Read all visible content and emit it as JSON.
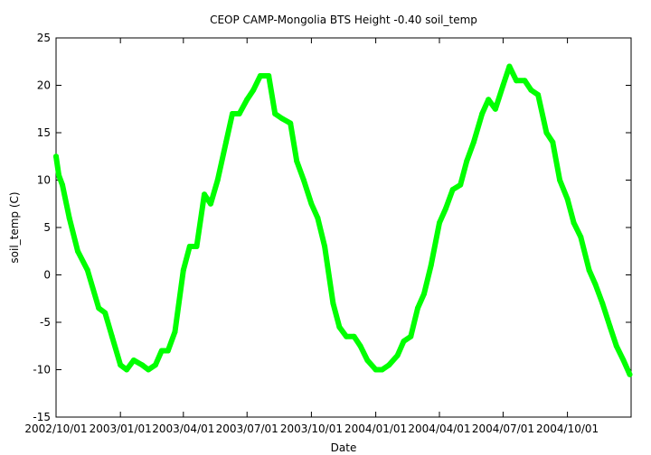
{
  "chart_data": {
    "type": "line",
    "title": "CEOP CAMP-Mongolia BTS Height -0.40 soil_temp",
    "xlabel": "Date",
    "ylabel": "soil_temp (C)",
    "ylim": [
      -15,
      25
    ],
    "yticks": [
      -15,
      -10,
      -5,
      0,
      5,
      10,
      15,
      20,
      25
    ],
    "xlim": [
      "2002-10-01",
      "2004-12-31"
    ],
    "xticks": [
      "2002/10/01",
      "2003/01/01",
      "2003/04/01",
      "2003/07/01",
      "2003/10/01",
      "2004/01/01",
      "2004/04/01",
      "2004/07/01",
      "2004/10/01"
    ],
    "grid": false,
    "series": [
      {
        "name": "soil_temp",
        "color": "#00ff00",
        "x": [
          "2002-10-01",
          "2002-10-05",
          "2002-10-10",
          "2002-10-20",
          "2002-11-01",
          "2002-11-15",
          "2002-12-01",
          "2002-12-10",
          "2002-12-20",
          "2003-01-01",
          "2003-01-10",
          "2003-01-20",
          "2003-02-01",
          "2003-02-10",
          "2003-02-20",
          "2003-03-01",
          "2003-03-10",
          "2003-03-20",
          "2003-04-01",
          "2003-04-10",
          "2003-04-20",
          "2003-05-01",
          "2003-05-10",
          "2003-05-20",
          "2003-06-01",
          "2003-06-10",
          "2003-06-20",
          "2003-07-01",
          "2003-07-10",
          "2003-07-20",
          "2003-08-01",
          "2003-08-10",
          "2003-08-20",
          "2003-09-01",
          "2003-09-10",
          "2003-09-20",
          "2003-10-01",
          "2003-10-10",
          "2003-10-20",
          "2003-11-01",
          "2003-11-10",
          "2003-11-20",
          "2003-12-01",
          "2003-12-10",
          "2003-12-20",
          "2004-01-01",
          "2004-01-10",
          "2004-01-20",
          "2004-02-01",
          "2004-02-10",
          "2004-02-20",
          "2004-03-01",
          "2004-03-10",
          "2004-03-20",
          "2004-04-01",
          "2004-04-10",
          "2004-04-20",
          "2004-05-01",
          "2004-05-10",
          "2004-05-20",
          "2004-06-01",
          "2004-06-10",
          "2004-06-20",
          "2004-07-01",
          "2004-07-10",
          "2004-07-20",
          "2004-08-01",
          "2004-08-10",
          "2004-08-20",
          "2004-09-01",
          "2004-09-10",
          "2004-09-20",
          "2004-10-01",
          "2004-10-10",
          "2004-10-20",
          "2004-11-01",
          "2004-11-10",
          "2004-11-20",
          "2004-12-01",
          "2004-12-10",
          "2004-12-20",
          "2004-12-29"
        ],
        "values": [
          12.5,
          10.5,
          9.5,
          6.0,
          2.5,
          0.5,
          -3.5,
          -4.0,
          -6.5,
          -9.5,
          -10.0,
          -9.0,
          -9.5,
          -10.0,
          -9.5,
          -8.0,
          -8.0,
          -6.0,
          0.5,
          3.0,
          3.0,
          8.5,
          7.5,
          10.0,
          14.0,
          17.0,
          17.0,
          18.5,
          19.5,
          21.0,
          21.0,
          17.0,
          16.5,
          16.0,
          12.0,
          10.0,
          7.5,
          6.0,
          3.0,
          -3.0,
          -5.5,
          -6.5,
          -6.5,
          -7.5,
          -9.0,
          -10.0,
          -10.0,
          -9.5,
          -8.5,
          -7.0,
          -6.5,
          -3.5,
          -2.0,
          1.0,
          5.5,
          7.0,
          9.0,
          9.5,
          12.0,
          14.0,
          17.0,
          18.5,
          17.5,
          20.0,
          22.0,
          20.5,
          20.5,
          19.5,
          19.0,
          15.0,
          14.0,
          10.0,
          8.0,
          5.5,
          4.0,
          0.5,
          -1.0,
          -3.0,
          -5.5,
          -7.5,
          -9.0,
          -10.5
        ]
      }
    ]
  }
}
